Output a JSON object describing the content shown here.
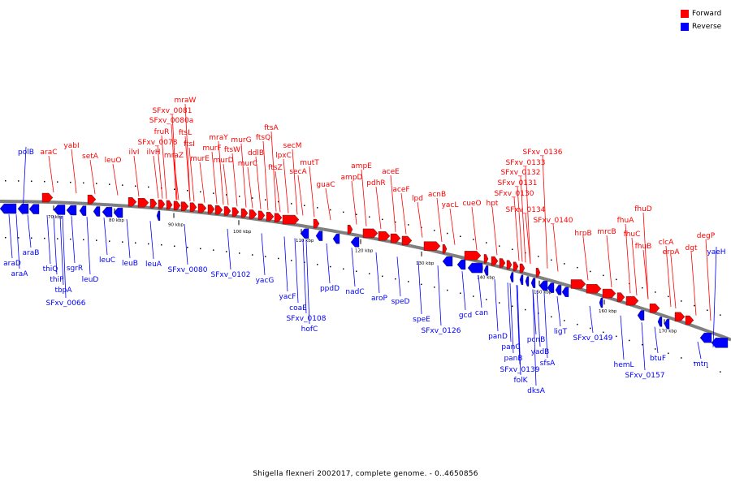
{
  "legend": {
    "forward_label": "Forward",
    "reverse_label": "Reverse",
    "forward_color": "#ff0000",
    "reverse_color": "#0000ff"
  },
  "caption": "Shigella flexneri 2002017, complete genome. - 0..4650856",
  "ticks": [
    "70 kbp",
    "80 kbp",
    "90 kbp",
    "100 kbp",
    "110 kbp",
    "120 kbp",
    "130 kbp",
    "140 kbp",
    "150 kbp",
    "160 kbp",
    "170 kbp"
  ],
  "forward_genes": [
    "araC",
    "yabI",
    "setA",
    "leuO",
    "ilvI",
    "ilvH",
    "SFxv_0078",
    "fruR",
    "SFxv_0080a",
    "SFxv_0081",
    "mraW",
    "mraZ",
    "ftsI",
    "ftsL",
    "murE",
    "murF",
    "mraY",
    "murD",
    "ftsW",
    "murG",
    "murC",
    "ddlB",
    "ftsQ",
    "ftsA",
    "ftsZ",
    "lpxC",
    "secM",
    "secA",
    "mutT",
    "guaC",
    "ampD",
    "ampE",
    "pdhR",
    "aceE",
    "aceF",
    "lpd",
    "acnB",
    "yacL",
    "cueO",
    "hpt",
    "SFxv_0130",
    "SFxv_0131",
    "SFxv_0132",
    "SFxv_0133",
    "SFxv_0136",
    "SFxv_0134",
    "SFxv_0140",
    "hrpB",
    "mrcB",
    "fhuA",
    "fhuC",
    "fhuD",
    "fhuB",
    "clcA",
    "erpA",
    "dgt",
    "degP"
  ],
  "reverse_genes": [
    "polB",
    "araD",
    "araA",
    "araB",
    "thiQ",
    "thiP",
    "tbpA",
    "SFxv_0066",
    "sgrR",
    "leuD",
    "leuC",
    "leuB",
    "leuA",
    "SFxv_0080",
    "SFxv_0102",
    "yacG",
    "yacF",
    "coaE",
    "SFxv_0108",
    "hofC",
    "ppdD",
    "nadC",
    "aroP",
    "speD",
    "speE",
    "SFxv_0126",
    "gcd",
    "can",
    "panD",
    "panC",
    "panB",
    "SFxv_0139",
    "folK",
    "pcnB",
    "yadB",
    "ligT",
    "sfsA",
    "dksA",
    "SFxv_0149",
    "hemL",
    "SFxv_0157",
    "btuF",
    "mtn",
    "yaeH"
  ]
}
